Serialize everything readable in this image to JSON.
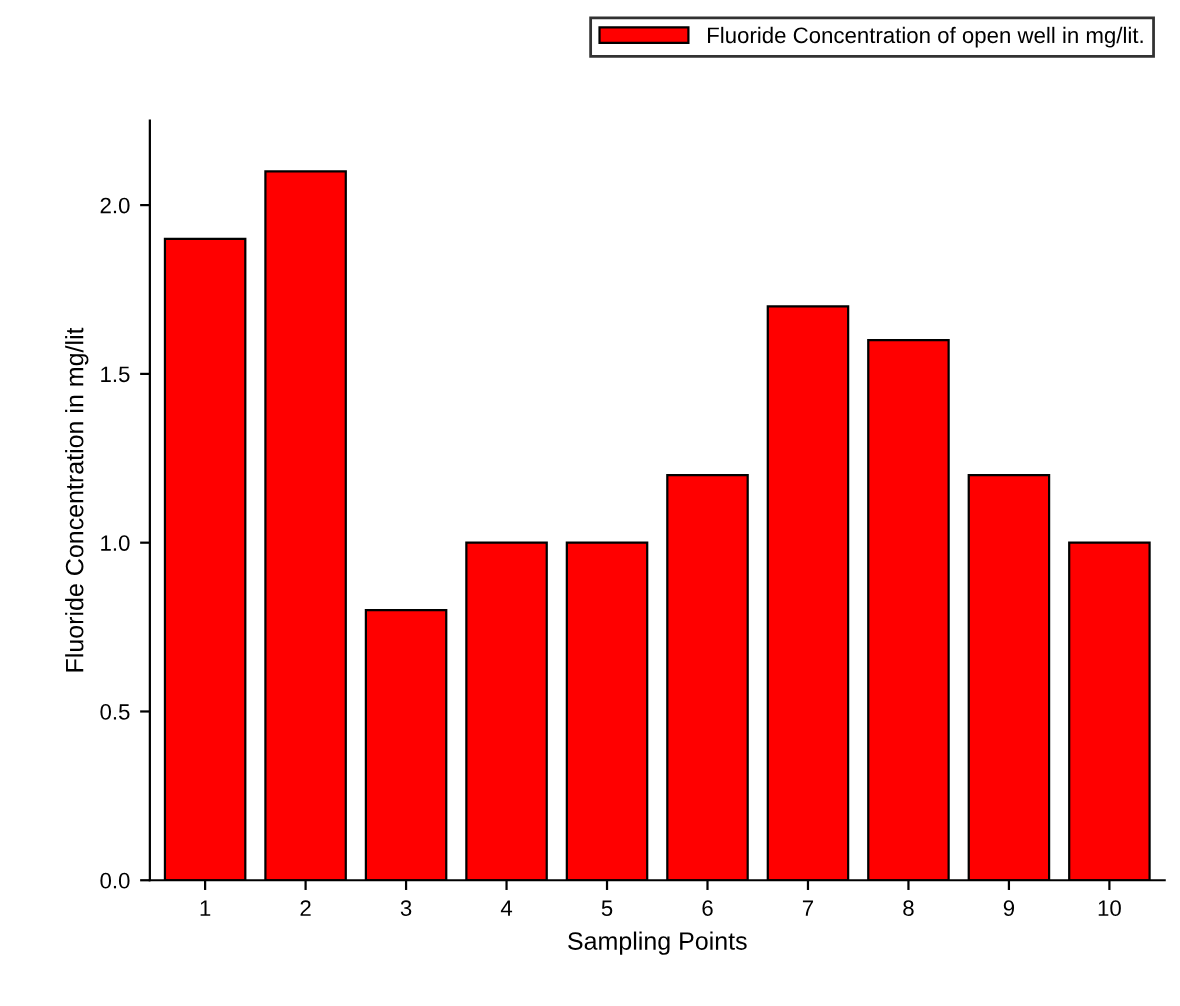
{
  "chart_data": {
    "type": "bar",
    "xlabel": "Sampling Points",
    "ylabel": "Fluoride Concentration in mg/lit",
    "categories": [
      "1",
      "2",
      "3",
      "4",
      "5",
      "6",
      "7",
      "8",
      "9",
      "10"
    ],
    "series": [
      {
        "name": "Fluoride Concentration of open well in mg/lit.",
        "color": "#ff0000",
        "values": [
          1.9,
          2.1,
          0.8,
          1.0,
          1.0,
          1.2,
          1.7,
          1.6,
          1.2,
          1.0
        ]
      }
    ],
    "ylim": [
      0,
      2.25
    ],
    "yticks": [
      {
        "value": 0,
        "label": "0.0"
      },
      {
        "value": 0.5,
        "label": "0.5"
      },
      {
        "value": 1.0,
        "label": "1.0"
      },
      {
        "value": 1.5,
        "label": "1.5"
      },
      {
        "value": 2.0,
        "label": "2.0"
      }
    ],
    "grid": false,
    "legend": "top right"
  }
}
